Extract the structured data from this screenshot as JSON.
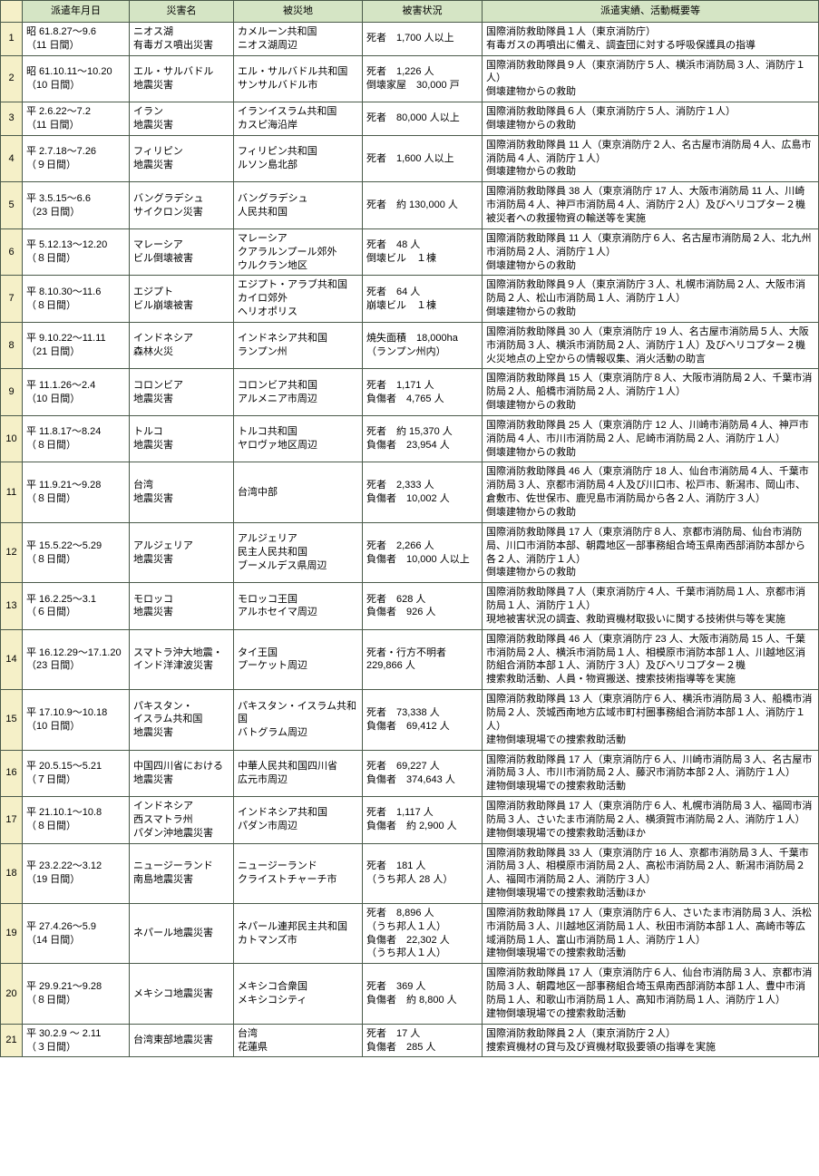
{
  "headers": [
    "派遣年月日",
    "災害名",
    "被災地",
    "被害状況",
    "派遣実績、活動概要等"
  ],
  "rows": [
    {
      "n": "1",
      "date": "昭 61.8.27～9.6\n（11 日間）",
      "name": "ニオス湖\n有毒ガス噴出災害",
      "area": "カメルーン共和国\nニオス湖周辺",
      "damage": "死者　1,700 人以上",
      "detail": "国際消防救助隊員１人（東京消防庁）\n有毒ガスの再噴出に備え、調査団に対する呼吸保護具の指導"
    },
    {
      "n": "2",
      "date": "昭 61.10.11～10.20\n（10 日間）",
      "name": "エル・サルバドル\n地震災害",
      "area": "エル・サルバドル共和国\nサンサルバドル市",
      "damage": "死者　1,226 人\n倒壊家屋　30,000 戸",
      "detail": "国際消防救助隊員９人（東京消防庁５人、横浜市消防局３人、消防庁１人）\n倒壊建物からの救助"
    },
    {
      "n": "3",
      "date": "平 2.6.22～7.2\n（11 日間）",
      "name": "イラン\n地震災害",
      "area": "イランイスラム共和国\nカスピ海沿岸",
      "damage": "死者　80,000 人以上",
      "detail": "国際消防救助隊員６人（東京消防庁５人、消防庁１人）\n倒壊建物からの救助"
    },
    {
      "n": "4",
      "date": "平 2.7.18～7.26\n（９日間）",
      "name": "フィリピン\n地震災害",
      "area": "フィリピン共和国\nルソン島北部",
      "damage": "死者　1,600 人以上",
      "detail": "国際消防救助隊員 11 人（東京消防庁２人、名古屋市消防局４人、広島市消防局４人、消防庁１人）\n倒壊建物からの救助"
    },
    {
      "n": "5",
      "date": "平 3.5.15～6.6\n（23 日間）",
      "name": "バングラデシュ\nサイクロン災害",
      "area": "バングラデシュ\n人民共和国",
      "damage": "死者　約 130,000 人",
      "detail": "国際消防救助隊員 38 人（東京消防庁 17 人、大阪市消防局 11 人、川崎市消防局４人、神戸市消防局４人、消防庁２人）及びヘリコプター２機\n被災者への救援物資の輸送等を実施"
    },
    {
      "n": "6",
      "date": "平 5.12.13～12.20\n（８日間）",
      "name": "マレーシア\nビル倒壊被害",
      "area": "マレーシア\nクアラルンプール郊外\nウルクラン地区",
      "damage": "死者　48 人\n倒壊ビル　１棟",
      "detail": "国際消防救助隊員 11 人（東京消防庁６人、名古屋市消防局２人、北九州市消防局２人、消防庁１人）\n倒壊建物からの救助"
    },
    {
      "n": "7",
      "date": "平 8.10.30～11.6\n（８日間）",
      "name": "エジプト\nビル崩壊被害",
      "area": "エジプト・アラブ共和国\nカイロ郊外\nヘリオポリス",
      "damage": "死者　64 人\n崩壊ビル　１棟",
      "detail": "国際消防救助隊員９人（東京消防庁３人、札幌市消防局２人、大阪市消防局２人、松山市消防局１人、消防庁１人）\n倒壊建物からの救助"
    },
    {
      "n": "8",
      "date": "平 9.10.22～11.11\n（21 日間）",
      "name": "インドネシア\n森林火災",
      "area": "インドネシア共和国\nランプン州",
      "damage": "焼失面積　18,000ha\n（ランプン州内）",
      "detail": "国際消防救助隊員 30 人（東京消防庁 19 人、名古屋市消防局５人、大阪市消防局３人、横浜市消防局２人、消防庁１人）及びヘリコプター２機\n火災地点の上空からの情報収集、消火活動の助言"
    },
    {
      "n": "9",
      "date": "平 11.1.26～2.4\n（10 日間）",
      "name": "コロンビア\n地震災害",
      "area": "コロンビア共和国\nアルメニア市周辺",
      "damage": "死者　1,171 人\n負傷者　4,765 人",
      "detail": "国際消防救助隊員 15 人（東京消防庁８人、大阪市消防局２人、千葉市消防局２人、船橋市消防局２人、消防庁１人）\n倒壊建物からの救助"
    },
    {
      "n": "10",
      "date": "平 11.8.17～8.24\n（８日間）",
      "name": "トルコ\n地震災害",
      "area": "トルコ共和国\nヤロヴァ地区周辺",
      "damage": "死者　約 15,370 人\n負傷者　23,954 人",
      "detail": "国際消防救助隊員 25 人（東京消防庁 12 人、川崎市消防局４人、神戸市消防局４人、市川市消防局２人、尼崎市消防局２人、消防庁１人）\n倒壊建物からの救助"
    },
    {
      "n": "11",
      "date": "平 11.9.21～9.28\n（８日間）",
      "name": "台湾\n地震災害",
      "area": "台湾中部",
      "damage": "死者　2,333 人\n負傷者　10,002 人",
      "detail": "国際消防救助隊員 46 人（東京消防庁 18 人、仙台市消防局４人、千葉市消防局３人、京都市消防局４人及び川口市、松戸市、新潟市、岡山市、倉敷市、佐世保市、鹿児島市消防局から各２人、消防庁３人）\n倒壊建物からの救助"
    },
    {
      "n": "12",
      "date": "平 15.5.22～5.29\n（８日間）",
      "name": "アルジェリア\n地震災害",
      "area": "アルジェリア\n民主人民共和国\nブーメルデス県周辺",
      "damage": "死者　2,266 人\n負傷者　10,000 人以上",
      "detail": "国際消防救助隊員 17 人（東京消防庁８人、京都市消防局、仙台市消防局、川口市消防本部、朝霞地区一部事務組合埼玉県南西部消防本部から各２人、消防庁１人）\n倒壊建物からの救助"
    },
    {
      "n": "13",
      "date": "平 16.2.25～3.1\n（６日間）",
      "name": "モロッコ\n地震災害",
      "area": "モロッコ王国\nアルホセイマ周辺",
      "damage": "死者　628 人\n負傷者　926 人",
      "detail": "国際消防救助隊員７人（東京消防庁４人、千葉市消防局１人、京都市消防局１人、消防庁１人）\n現地被害状況の調査、救助資機材取扱いに関する技術供与等を実施"
    },
    {
      "n": "14",
      "date": "平 16.12.29～17.1.20\n（23 日間）",
      "name": "スマトラ沖大地震・\nインド洋津波災害",
      "area": "タイ王国\nプーケット周辺",
      "damage": "死者・行方不明者\n229,866 人",
      "detail": "国際消防救助隊員 46 人（東京消防庁 23 人、大阪市消防局 15 人、千葉市消防局２人、横浜市消防局１人、相模原市消防本部１人、川越地区消防組合消防本部１人、消防庁３人）及びヘリコプター２機\n捜索救助活動、人員・物資搬送、捜索技術指導等を実施"
    },
    {
      "n": "15",
      "date": "平 17.10.9～10.18\n（10 日間）",
      "name": "パキスタン・\nイスラム共和国\n地震災害",
      "area": "パキスタン・イスラム共和国\nバトグラム周辺",
      "damage": "死者　73,338 人\n負傷者　69,412 人",
      "detail": "国際消防救助隊員 13 人（東京消防庁６人、横浜市消防局３人、船橋市消防局２人、茨城西南地方広域市町村圏事務組合消防本部１人、消防庁１人）\n建物倒壊現場での捜索救助活動"
    },
    {
      "n": "16",
      "date": "平 20.5.15～5.21\n（７日間）",
      "name": "中国四川省における\n地震災害",
      "area": "中華人民共和国四川省\n広元市周辺",
      "damage": "死者　69,227 人\n負傷者　374,643 人",
      "detail": "国際消防救助隊員 17 人（東京消防庁６人、川崎市消防局３人、名古屋市消防局３人、市川市消防局２人、藤沢市消防本部２人、消防庁１人）\n建物倒壊現場での捜索救助活動"
    },
    {
      "n": "17",
      "date": "平 21.10.1～10.8\n（８日間）",
      "name": "インドネシア\n西スマトラ州\nパダン沖地震災害",
      "area": "インドネシア共和国\nパダン市周辺",
      "damage": "死者　1,117 人\n負傷者　約 2,900 人",
      "detail": "国際消防救助隊員 17 人（東京消防庁６人、札幌市消防局３人、福岡市消防局３人、さいたま市消防局２人、横須賀市消防局２人、消防庁１人）\n建物倒壊現場での捜索救助活動ほか"
    },
    {
      "n": "18",
      "date": "平 23.2.22～3.12\n（19 日間）",
      "name": "ニュージーランド\n南島地震災害",
      "area": "ニュージーランド\nクライストチャーチ市",
      "damage": "死者　181 人\n（うち邦人 28 人）",
      "detail": "国際消防救助隊員 33 人（東京消防庁 16 人、京都市消防局３人、千葉市消防局３人、相模原市消防局２人、高松市消防局２人、新潟市消防局２人、福岡市消防局２人、消防庁３人）\n建物倒壊現場での捜索救助活動ほか"
    },
    {
      "n": "19",
      "date": "平 27.4.26～5.9\n（14 日間）",
      "name": "ネパール地震災害",
      "area": "ネパール連邦民主共和国\nカトマンズ市",
      "damage": "死者　8,896 人\n（うち邦人１人）\n負傷者　22,302 人\n（うち邦人１人）",
      "detail": "国際消防救助隊員 17 人（東京消防庁６人、さいたま市消防局３人、浜松市消防局３人、川越地区消防局１人、秋田市消防本部１人、高崎市等広域消防局１人、富山市消防局１人、消防庁１人）\n建物倒壊現場での捜索救助活動"
    },
    {
      "n": "20",
      "date": "平 29.9.21～9.28\n（８日間）",
      "name": "メキシコ地震災害",
      "area": "メキシコ合衆国\nメキシコシティ",
      "damage": "死者　369 人\n負傷者　約 8,800 人",
      "detail": "国際消防救助隊員 17 人（東京消防庁６人、仙台市消防局３人、京都市消防局３人、朝霞地区一部事務組合埼玉県南西部消防本部１人、豊中市消防局１人、和歌山市消防局１人、高知市消防局１人、消防庁１人）\n建物倒壊現場での捜索救助活動"
    },
    {
      "n": "21",
      "date": "平 30.2.9 ～ 2.11\n（３日間）",
      "name": "台湾東部地震災害",
      "area": "台湾\n花蓮県",
      "damage": "死者　17 人\n負傷者　285 人",
      "detail": "国際消防救助隊員２人（東京消防庁２人）\n捜索資機材の貸与及び資機材取扱要領の指導を実施"
    }
  ]
}
